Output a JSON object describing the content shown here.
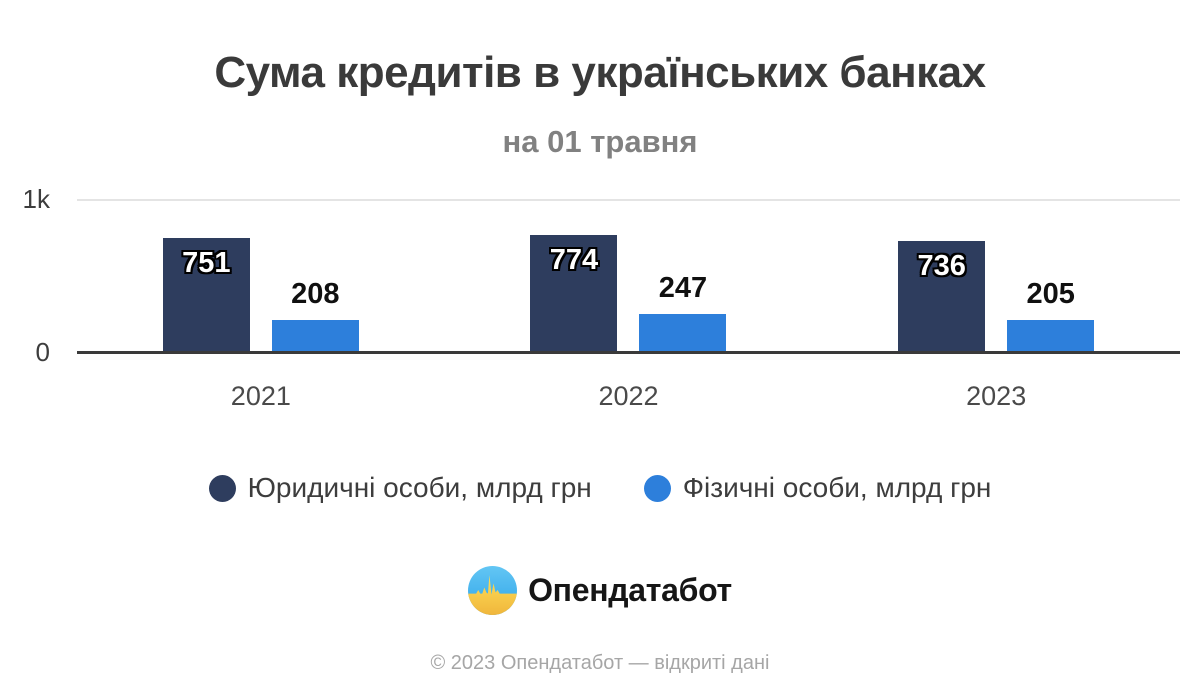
{
  "header": {
    "title": "Сума кредитів в українських банках",
    "subtitle": "на 01 травня"
  },
  "chart_data": {
    "type": "bar",
    "title": "Сума кредитів в українських банках",
    "subtitle": "на 01 травня",
    "categories": [
      "2021",
      "2022",
      "2023"
    ],
    "series": [
      {
        "name": "Юридичні особи, млрд грн",
        "values": [
          751,
          774,
          736
        ],
        "color": "#2e3d5e"
      },
      {
        "name": "Фізичні особи, млрд грн",
        "values": [
          208,
          247,
          205
        ],
        "color": "#2d7fdb"
      }
    ],
    "xlabel": "",
    "ylabel": "",
    "ylim": [
      0,
      1000
    ],
    "y_ticks": [
      {
        "label": "1k",
        "value": 1000
      },
      {
        "label": "0",
        "value": 0
      }
    ],
    "grid": "top-gridline-only",
    "legend_position": "bottom",
    "value_label_styles": {
      "tall_bars": "inside-top-white-with-black-outline",
      "short_bars": "above-bar-black"
    }
  },
  "branding": {
    "logo_text": "Опендатабот",
    "logo_icon": "opendatabot-pulse-flag-icon",
    "icon_colors": {
      "blue_top": "#45b3ee",
      "yellow_bottom": "#ffd44a"
    }
  },
  "footer": {
    "copyright": "© 2023 Опендатабот — відкриті дані"
  },
  "colors": {
    "background": "#ffffff",
    "series_legal_entities": "#2e3d5e",
    "series_individuals": "#2d7fdb",
    "axis_line": "#3a3a3a",
    "gridline": "#e4e4e4",
    "title_text": "#3a3a3a",
    "subtitle_text": "#818181",
    "tick_text": "#3d3d3d",
    "category_text": "#4a4a4a",
    "legend_text": "#3d3d3d",
    "footer_text": "#a6a6a6"
  }
}
